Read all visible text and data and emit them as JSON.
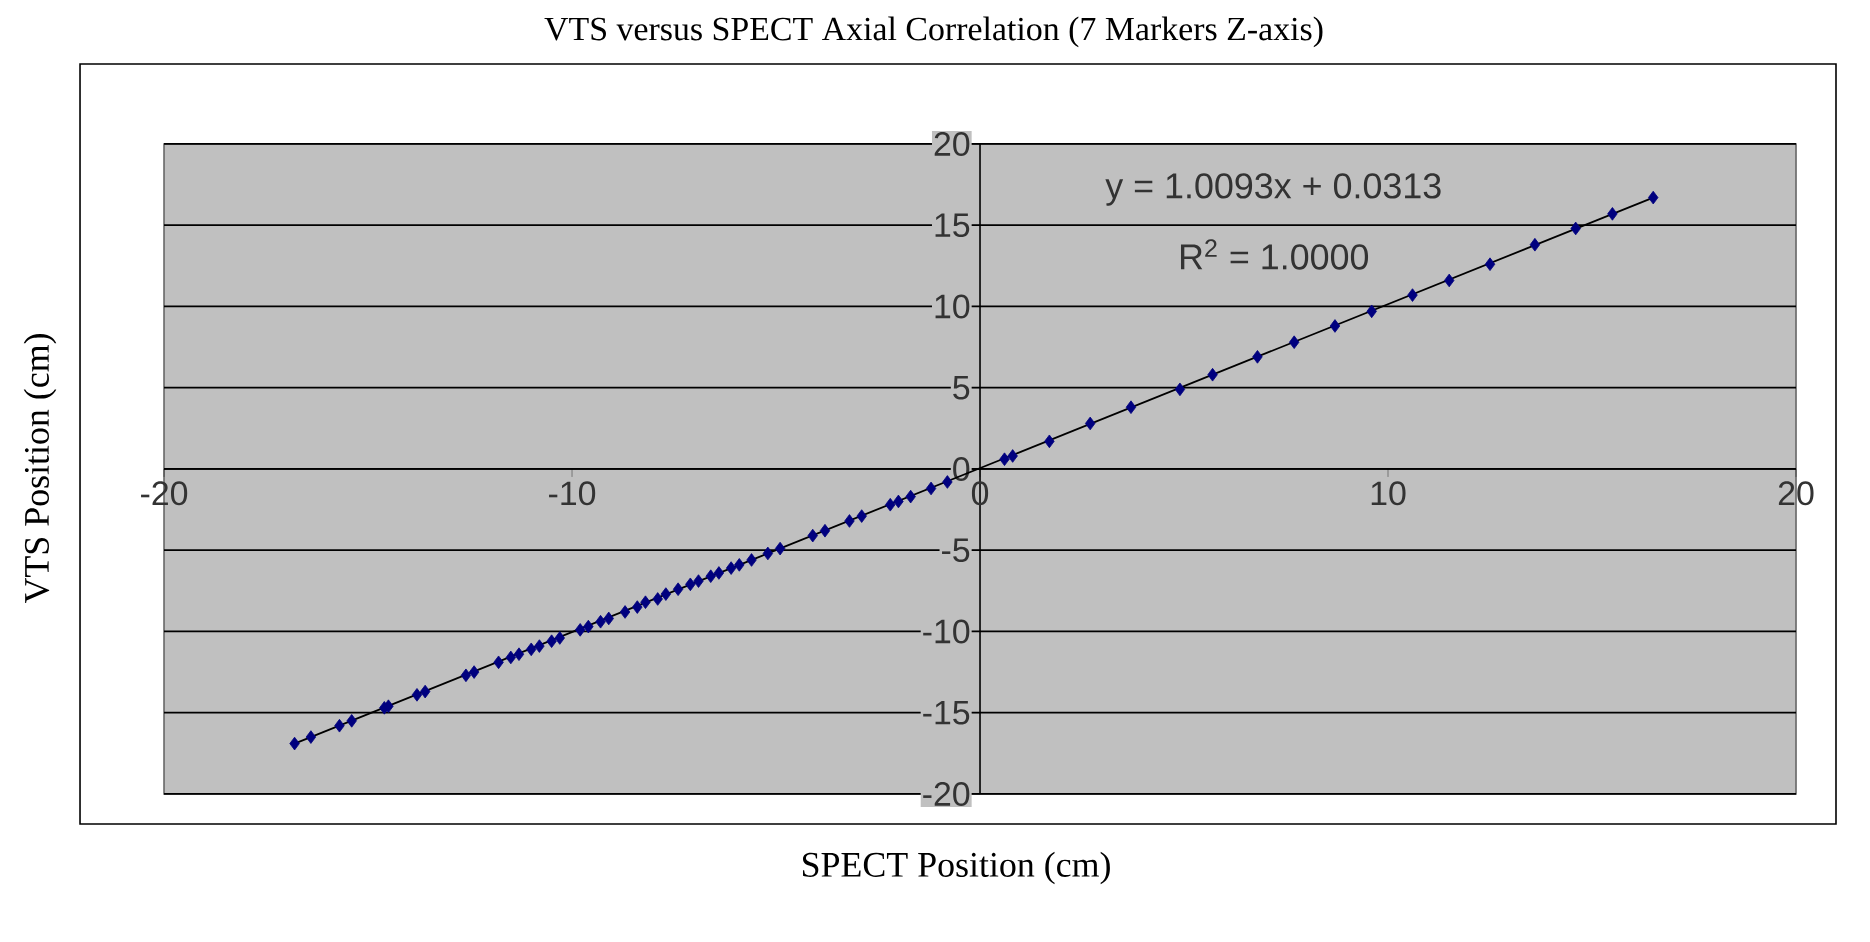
{
  "chart_data": {
    "type": "scatter",
    "title": "VTS versus SPECT Axial Correlation (7 Markers Z-axis)",
    "xlabel": "SPECT Position (cm)",
    "ylabel": "VTS Position (cm)",
    "xlim": [
      -20,
      20
    ],
    "ylim": [
      -20,
      20
    ],
    "xticks": [
      -20,
      -10,
      0,
      10,
      20
    ],
    "yticks": [
      -20,
      -15,
      -10,
      -5,
      0,
      5,
      10,
      15,
      20
    ],
    "grid": "y",
    "marker": "diamond",
    "annotations": [
      "y = 1.0093x + 0.0313",
      "R$^{2}$ = 1.0000"
    ],
    "series": [
      {
        "color": "#00007f",
        "x": [
          -16.8,
          -16.4,
          -15.7,
          -15.4,
          -14.6,
          -14.5,
          -13.8,
          -13.6,
          -12.6,
          -12.4,
          -11.8,
          -11.5,
          -11.3,
          -11.0,
          -10.8,
          -10.5,
          -10.3,
          -9.8,
          -9.6,
          -9.3,
          -9.1,
          -8.7,
          -8.4,
          -8.2,
          -7.9,
          -7.7,
          -7.4,
          -7.1,
          -6.9,
          -6.6,
          -6.4,
          -6.1,
          -5.9,
          -5.6,
          -5.2,
          -4.9,
          -4.1,
          -3.8,
          -3.2,
          -2.9,
          -2.2,
          -2.0,
          -1.7,
          -1.2,
          -0.8,
          0.6,
          0.8,
          1.7,
          2.7,
          3.7,
          4.9,
          5.7,
          6.8,
          7.7,
          8.7,
          9.6,
          10.6,
          11.5,
          12.5,
          13.6,
          14.6,
          15.5,
          16.5
        ],
        "values": [
          -16.9,
          -16.5,
          -15.8,
          -15.5,
          -14.7,
          -14.6,
          -13.9,
          -13.7,
          -12.7,
          -12.5,
          -11.9,
          -11.6,
          -11.4,
          -11.1,
          -10.9,
          -10.6,
          -10.4,
          -9.9,
          -9.7,
          -9.4,
          -9.2,
          -8.8,
          -8.5,
          -8.2,
          -8.0,
          -7.7,
          -7.4,
          -7.1,
          -6.9,
          -6.6,
          -6.4,
          -6.1,
          -5.9,
          -5.6,
          -5.2,
          -4.9,
          -4.1,
          -3.8,
          -3.2,
          -2.9,
          -2.2,
          -2.0,
          -1.7,
          -1.2,
          -0.8,
          0.6,
          0.8,
          1.7,
          2.8,
          3.8,
          4.9,
          5.8,
          6.9,
          7.8,
          8.8,
          9.7,
          10.7,
          11.6,
          12.6,
          13.8,
          14.8,
          15.7,
          16.7
        ]
      },
      {
        "type": "line",
        "color": "#000000",
        "marker": "none",
        "x": [
          -16.8,
          16.5
        ],
        "values": [
          -16.9,
          16.7
        ]
      }
    ]
  }
}
